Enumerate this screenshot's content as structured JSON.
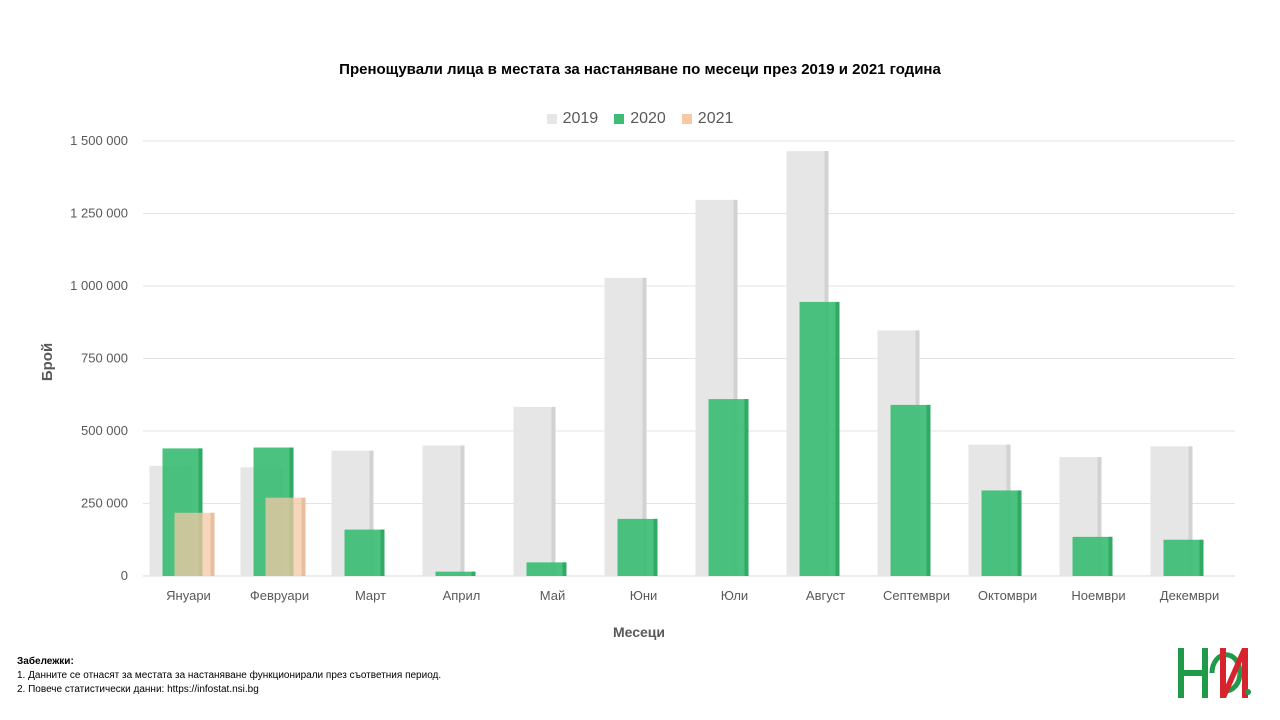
{
  "chart_data": {
    "type": "bar",
    "title": "Пренощували лица в местата за настаняване  по месеци през 2019 и 2021 година",
    "xlabel": "Месеци",
    "ylabel": "Брой",
    "ylim": [
      0,
      1500000
    ],
    "yticks": [
      0,
      250000,
      500000,
      750000,
      1000000,
      1250000,
      1500000
    ],
    "ytick_labels": [
      "0",
      "250 000",
      "500 000",
      "750 000",
      "1 000 000",
      "1 250 000",
      "1 500 000"
    ],
    "grid": true,
    "legend_position": "top",
    "categories": [
      "Януари",
      "Февруари",
      "Март",
      "Април",
      "Май",
      "Юни",
      "Юли",
      "Август",
      "Септември",
      "Октомври",
      "Ноември",
      "Декември"
    ],
    "series": [
      {
        "name": "2019",
        "color": "#e6e6e6",
        "values": [
          380000,
          375000,
          432000,
          450000,
          583000,
          1028000,
          1297000,
          1465000,
          847000,
          453000,
          410000,
          447000
        ]
      },
      {
        "name": "2020",
        "color": "#3dbd75",
        "values": [
          440000,
          443000,
          160000,
          15000,
          47000,
          197000,
          610000,
          945000,
          590000,
          295000,
          135000,
          125000
        ]
      },
      {
        "name": "2021",
        "color": "#f5c8a6",
        "values": [
          218000,
          270000,
          null,
          null,
          null,
          null,
          null,
          null,
          null,
          null,
          null,
          null
        ]
      }
    ]
  },
  "notes": {
    "heading": "Забележки:",
    "items": [
      "1. Данните се отнасят за местата за настаняване функционирали през съответния период.",
      "2. Повече статистически данни: https://infostat.nsi.bg"
    ]
  },
  "logo": {
    "text": "НСИ",
    "colors": {
      "green": "#1f9a48",
      "red": "#d7232e"
    }
  }
}
